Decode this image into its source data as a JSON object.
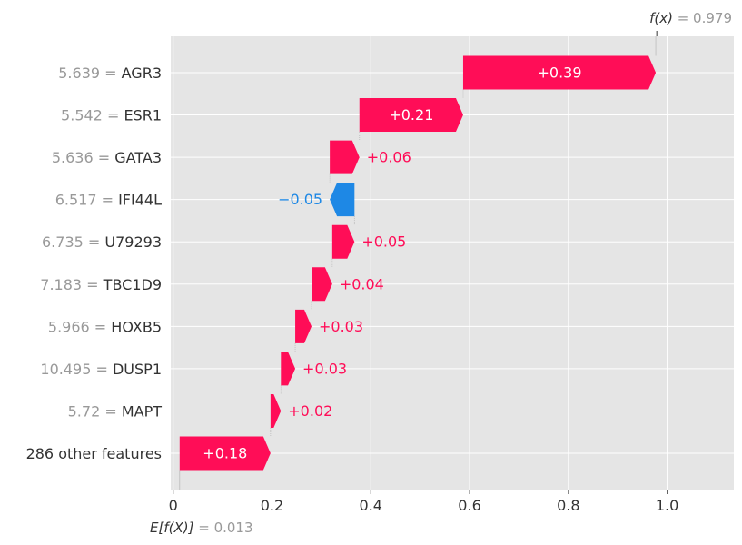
{
  "chart_data": {
    "type": "waterfall",
    "base_value": 0.013,
    "output_value": 0.979,
    "base_label_symbol": "E[f(X)]",
    "base_label_value": "= 0.013",
    "output_label_symbol": "f(x)",
    "output_label_value": "= 0.979",
    "xlim": [
      -0.005,
      1.135
    ],
    "x_ticks": [
      0,
      0.2,
      0.4,
      0.6,
      0.8,
      1.0
    ],
    "x_tick_labels": [
      "0",
      "0.2",
      "0.4",
      "0.6",
      "0.8",
      "1.0"
    ],
    "grid": true,
    "colors": {
      "positive": "#ff0d57",
      "negative": "#1e88e5",
      "background": "#e5e5e5",
      "grid": "#ffffff"
    },
    "features": [
      {
        "value": "5.639",
        "name": "AGR3",
        "contribution": 0.39,
        "label": "+0.39"
      },
      {
        "value": "5.542",
        "name": "ESR1",
        "contribution": 0.21,
        "label": "+0.21"
      },
      {
        "value": "5.636",
        "name": "GATA3",
        "contribution": 0.06,
        "label": "+0.06"
      },
      {
        "value": "6.517",
        "name": "IFI44L",
        "contribution": -0.05,
        "label": "−0.05"
      },
      {
        "value": "6.735",
        "name": "U79293",
        "contribution": 0.045,
        "label": "+0.05"
      },
      {
        "value": "7.183",
        "name": "TBC1D9",
        "contribution": 0.042,
        "label": "+0.04"
      },
      {
        "value": "5.966",
        "name": "HOXB5",
        "contribution": 0.033,
        "label": "+0.03"
      },
      {
        "value": "10.495",
        "name": "DUSP1",
        "contribution": 0.029,
        "label": "+0.03"
      },
      {
        "value": "5.72",
        "name": "MAPT",
        "contribution": 0.021,
        "label": "+0.02"
      },
      {
        "value": "",
        "name": "286 other features",
        "contribution": 0.184,
        "label": "+0.18"
      }
    ]
  }
}
